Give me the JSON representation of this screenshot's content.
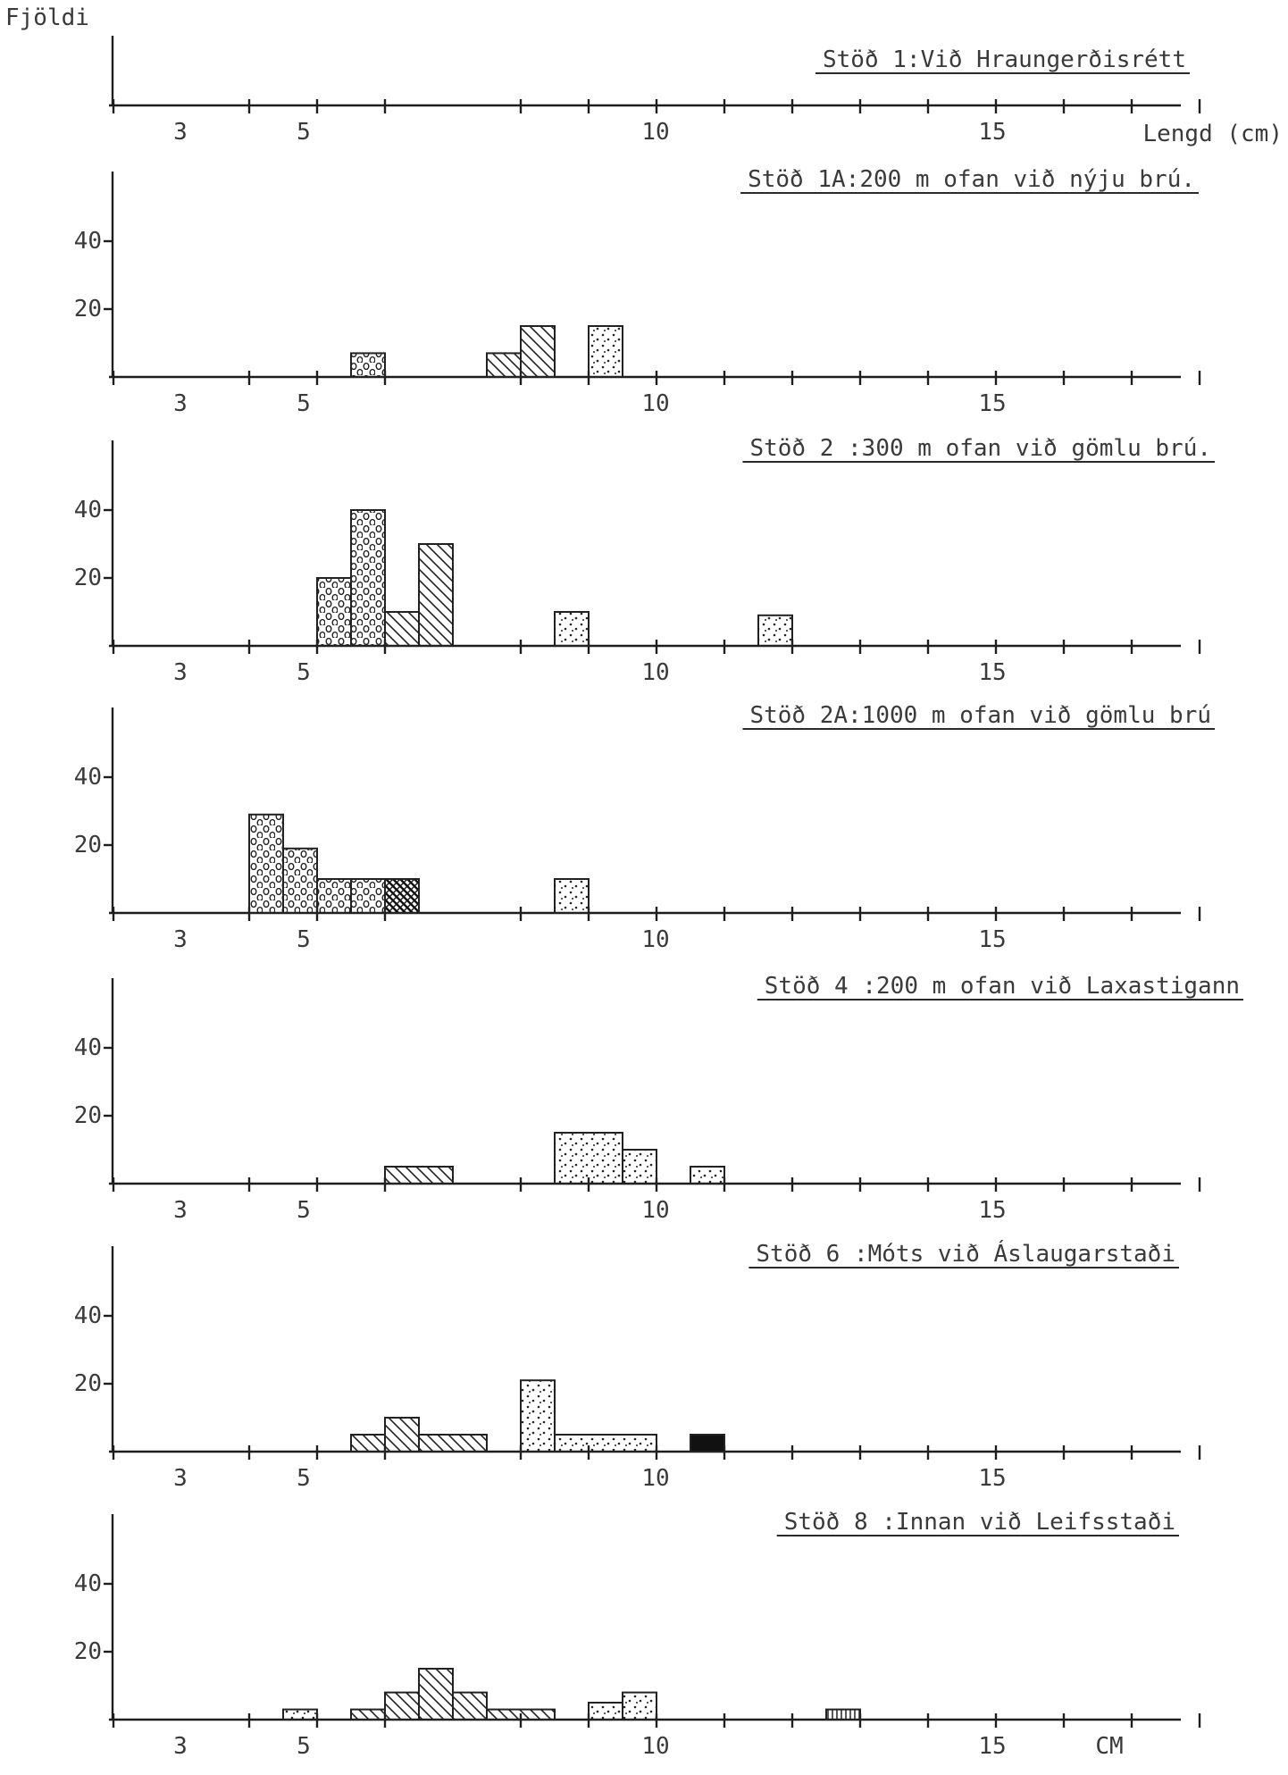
{
  "y_axis_label": "Fjöldi",
  "x_axis_label": "Lengd  (cm)",
  "last_axis_unit": "CM",
  "chart_data": [
    {
      "type": "bar",
      "title": "Stöð 1:Við Hraungerðisrétt",
      "xlabel": "Lengd  (cm)",
      "ylabel": "Fjöldi",
      "x_ticks": [
        "3",
        "5",
        "10",
        "15"
      ],
      "y_ticks": [],
      "xlim": [
        2,
        18
      ],
      "ylim": [
        0,
        60
      ],
      "bars": []
    },
    {
      "type": "bar",
      "title": "Stöð 1A:200 m ofan við nýju brú.",
      "x_ticks": [
        "3",
        "5",
        "10",
        "15"
      ],
      "y_ticks": [
        "40",
        "20"
      ],
      "xlim": [
        2,
        18
      ],
      "ylim": [
        0,
        60
      ],
      "bars": [
        {
          "x0": 5.5,
          "x1": 6.0,
          "value": 7,
          "pattern": "circles"
        },
        {
          "x0": 7.5,
          "x1": 8.0,
          "value": 7,
          "pattern": "hatch"
        },
        {
          "x0": 8.0,
          "x1": 8.5,
          "value": 15,
          "pattern": "hatch"
        },
        {
          "x0": 9.0,
          "x1": 9.5,
          "value": 15,
          "pattern": "dots"
        }
      ]
    },
    {
      "type": "bar",
      "title": "Stöð 2 :300 m ofan við gömlu brú.",
      "x_ticks": [
        "3",
        "5",
        "10",
        "15"
      ],
      "y_ticks": [
        "40",
        "20"
      ],
      "xlim": [
        2,
        18
      ],
      "ylim": [
        0,
        60
      ],
      "bars": [
        {
          "x0": 5.0,
          "x1": 5.5,
          "value": 20,
          "pattern": "circles"
        },
        {
          "x0": 5.5,
          "x1": 6.0,
          "value": 40,
          "pattern": "circles"
        },
        {
          "x0": 6.0,
          "x1": 6.5,
          "value": 10,
          "pattern": "hatch"
        },
        {
          "x0": 6.5,
          "x1": 7.0,
          "value": 30,
          "pattern": "hatch"
        },
        {
          "x0": 8.5,
          "x1": 9.0,
          "value": 10,
          "pattern": "dots"
        },
        {
          "x0": 11.5,
          "x1": 12.0,
          "value": 9,
          "pattern": "dots"
        }
      ]
    },
    {
      "type": "bar",
      "title": "Stöð 2A:1000 m ofan við gömlu brú",
      "x_ticks": [
        "3",
        "5",
        "10",
        "15"
      ],
      "y_ticks": [
        "40",
        "20"
      ],
      "xlim": [
        2,
        18
      ],
      "ylim": [
        0,
        60
      ],
      "bars": [
        {
          "x0": 4.0,
          "x1": 4.5,
          "value": 29,
          "pattern": "circles"
        },
        {
          "x0": 4.5,
          "x1": 5.0,
          "value": 19,
          "pattern": "circles"
        },
        {
          "x0": 5.0,
          "x1": 5.5,
          "value": 10,
          "pattern": "circles"
        },
        {
          "x0": 5.5,
          "x1": 6.0,
          "value": 10,
          "pattern": "circles"
        },
        {
          "x0": 6.0,
          "x1": 6.5,
          "value": 10,
          "pattern": "crosshatch"
        },
        {
          "x0": 8.5,
          "x1": 9.0,
          "value": 10,
          "pattern": "dots"
        }
      ]
    },
    {
      "type": "bar",
      "title": "Stöð 4 :200 m ofan við Laxastigann",
      "x_ticks": [
        "3",
        "5",
        "10",
        "15"
      ],
      "y_ticks": [
        "40",
        "20"
      ],
      "xlim": [
        2,
        18
      ],
      "ylim": [
        0,
        60
      ],
      "bars": [
        {
          "x0": 6.0,
          "x1": 7.0,
          "value": 5,
          "pattern": "hatch"
        },
        {
          "x0": 8.5,
          "x1": 9.5,
          "value": 15,
          "pattern": "dots"
        },
        {
          "x0": 9.5,
          "x1": 10.0,
          "value": 10,
          "pattern": "dots"
        },
        {
          "x0": 10.5,
          "x1": 11.0,
          "value": 5,
          "pattern": "dots"
        }
      ]
    },
    {
      "type": "bar",
      "title": "Stöð 6 :Móts við Áslaugarstaði",
      "x_ticks": [
        "3",
        "5",
        "10",
        "15"
      ],
      "y_ticks": [
        "40",
        "20"
      ],
      "xlim": [
        2,
        18
      ],
      "ylim": [
        0,
        60
      ],
      "bars": [
        {
          "x0": 5.5,
          "x1": 6.0,
          "value": 5,
          "pattern": "hatch"
        },
        {
          "x0": 6.0,
          "x1": 6.5,
          "value": 10,
          "pattern": "hatch"
        },
        {
          "x0": 6.5,
          "x1": 7.5,
          "value": 5,
          "pattern": "hatch"
        },
        {
          "x0": 8.0,
          "x1": 8.5,
          "value": 21,
          "pattern": "dots"
        },
        {
          "x0": 8.5,
          "x1": 10.0,
          "value": 5,
          "pattern": "dots"
        },
        {
          "x0": 10.5,
          "x1": 11.0,
          "value": 5,
          "pattern": "solid"
        }
      ]
    },
    {
      "type": "bar",
      "title": "Stöð 8 :Innan við Leifsstaði",
      "x_ticks": [
        "3",
        "5",
        "10",
        "15",
        "CM"
      ],
      "y_ticks": [
        "40",
        "20"
      ],
      "xlim": [
        2,
        18
      ],
      "ylim": [
        0,
        60
      ],
      "bars": [
        {
          "x0": 4.5,
          "x1": 5.0,
          "value": 3,
          "pattern": "dots"
        },
        {
          "x0": 5.5,
          "x1": 6.0,
          "value": 3,
          "pattern": "hatch"
        },
        {
          "x0": 6.0,
          "x1": 6.5,
          "value": 8,
          "pattern": "hatch"
        },
        {
          "x0": 6.5,
          "x1": 7.0,
          "value": 15,
          "pattern": "hatch"
        },
        {
          "x0": 7.0,
          "x1": 7.5,
          "value": 8,
          "pattern": "hatch"
        },
        {
          "x0": 7.5,
          "x1": 8.5,
          "value": 3,
          "pattern": "hatch"
        },
        {
          "x0": 9.0,
          "x1": 9.5,
          "value": 5,
          "pattern": "dots"
        },
        {
          "x0": 9.5,
          "x1": 10.0,
          "value": 8,
          "pattern": "dots"
        },
        {
          "x0": 12.5,
          "x1": 13.0,
          "value": 3,
          "pattern": "vlines"
        }
      ]
    }
  ]
}
